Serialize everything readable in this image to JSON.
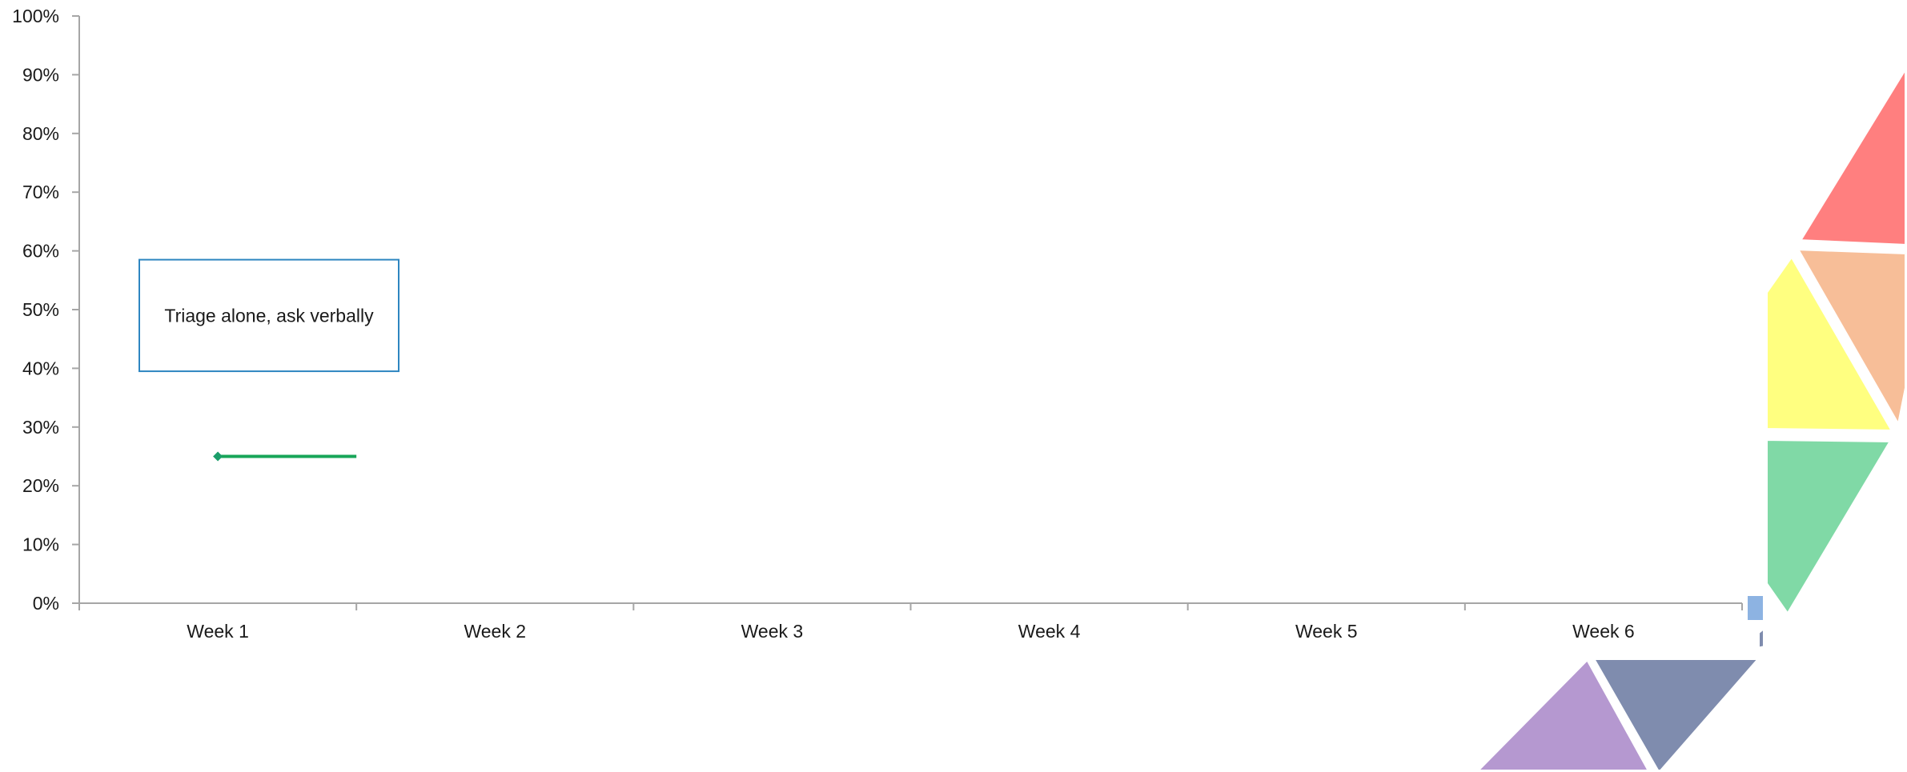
{
  "chart_data": {
    "type": "line",
    "title": "",
    "xlabel": "",
    "ylabel": "",
    "categories": [
      "Week 1",
      "Week 2",
      "Week 3",
      "Week 4",
      "Week 5",
      "Week 6"
    ],
    "y_tick_labels": [
      "0%",
      "10%",
      "20%",
      "30%",
      "40%",
      "50%",
      "60%",
      "70%",
      "80%",
      "90%",
      "100%"
    ],
    "ylim": [
      0,
      1
    ],
    "grid": false,
    "series": [
      {
        "color": "#18a558",
        "points": [
          {
            "x": "Week 1",
            "y": 0.25
          },
          {
            "x": "Week 1.5",
            "y": 0.25
          }
        ]
      }
    ],
    "annotations": [
      {
        "text": "Triage alone, ask verbally",
        "border_color": "#2e86c1",
        "y_top": 0.585,
        "y_bottom": 0.395
      }
    ]
  },
  "decoration": {
    "name": "triangle-mosaic",
    "colors": {
      "red": "#ff7f7f",
      "peach": "#f7be98",
      "yellow": "#ffff80",
      "green": "#80d9a6",
      "blue": "#8db3e2",
      "slate": "#7f8cae",
      "purple": "#b598d0"
    }
  },
  "colors": {
    "axis": "#a6a6a6",
    "text": "#1a1a1a",
    "series_line": "#18a558",
    "annotation_border": "#2e86c1"
  }
}
